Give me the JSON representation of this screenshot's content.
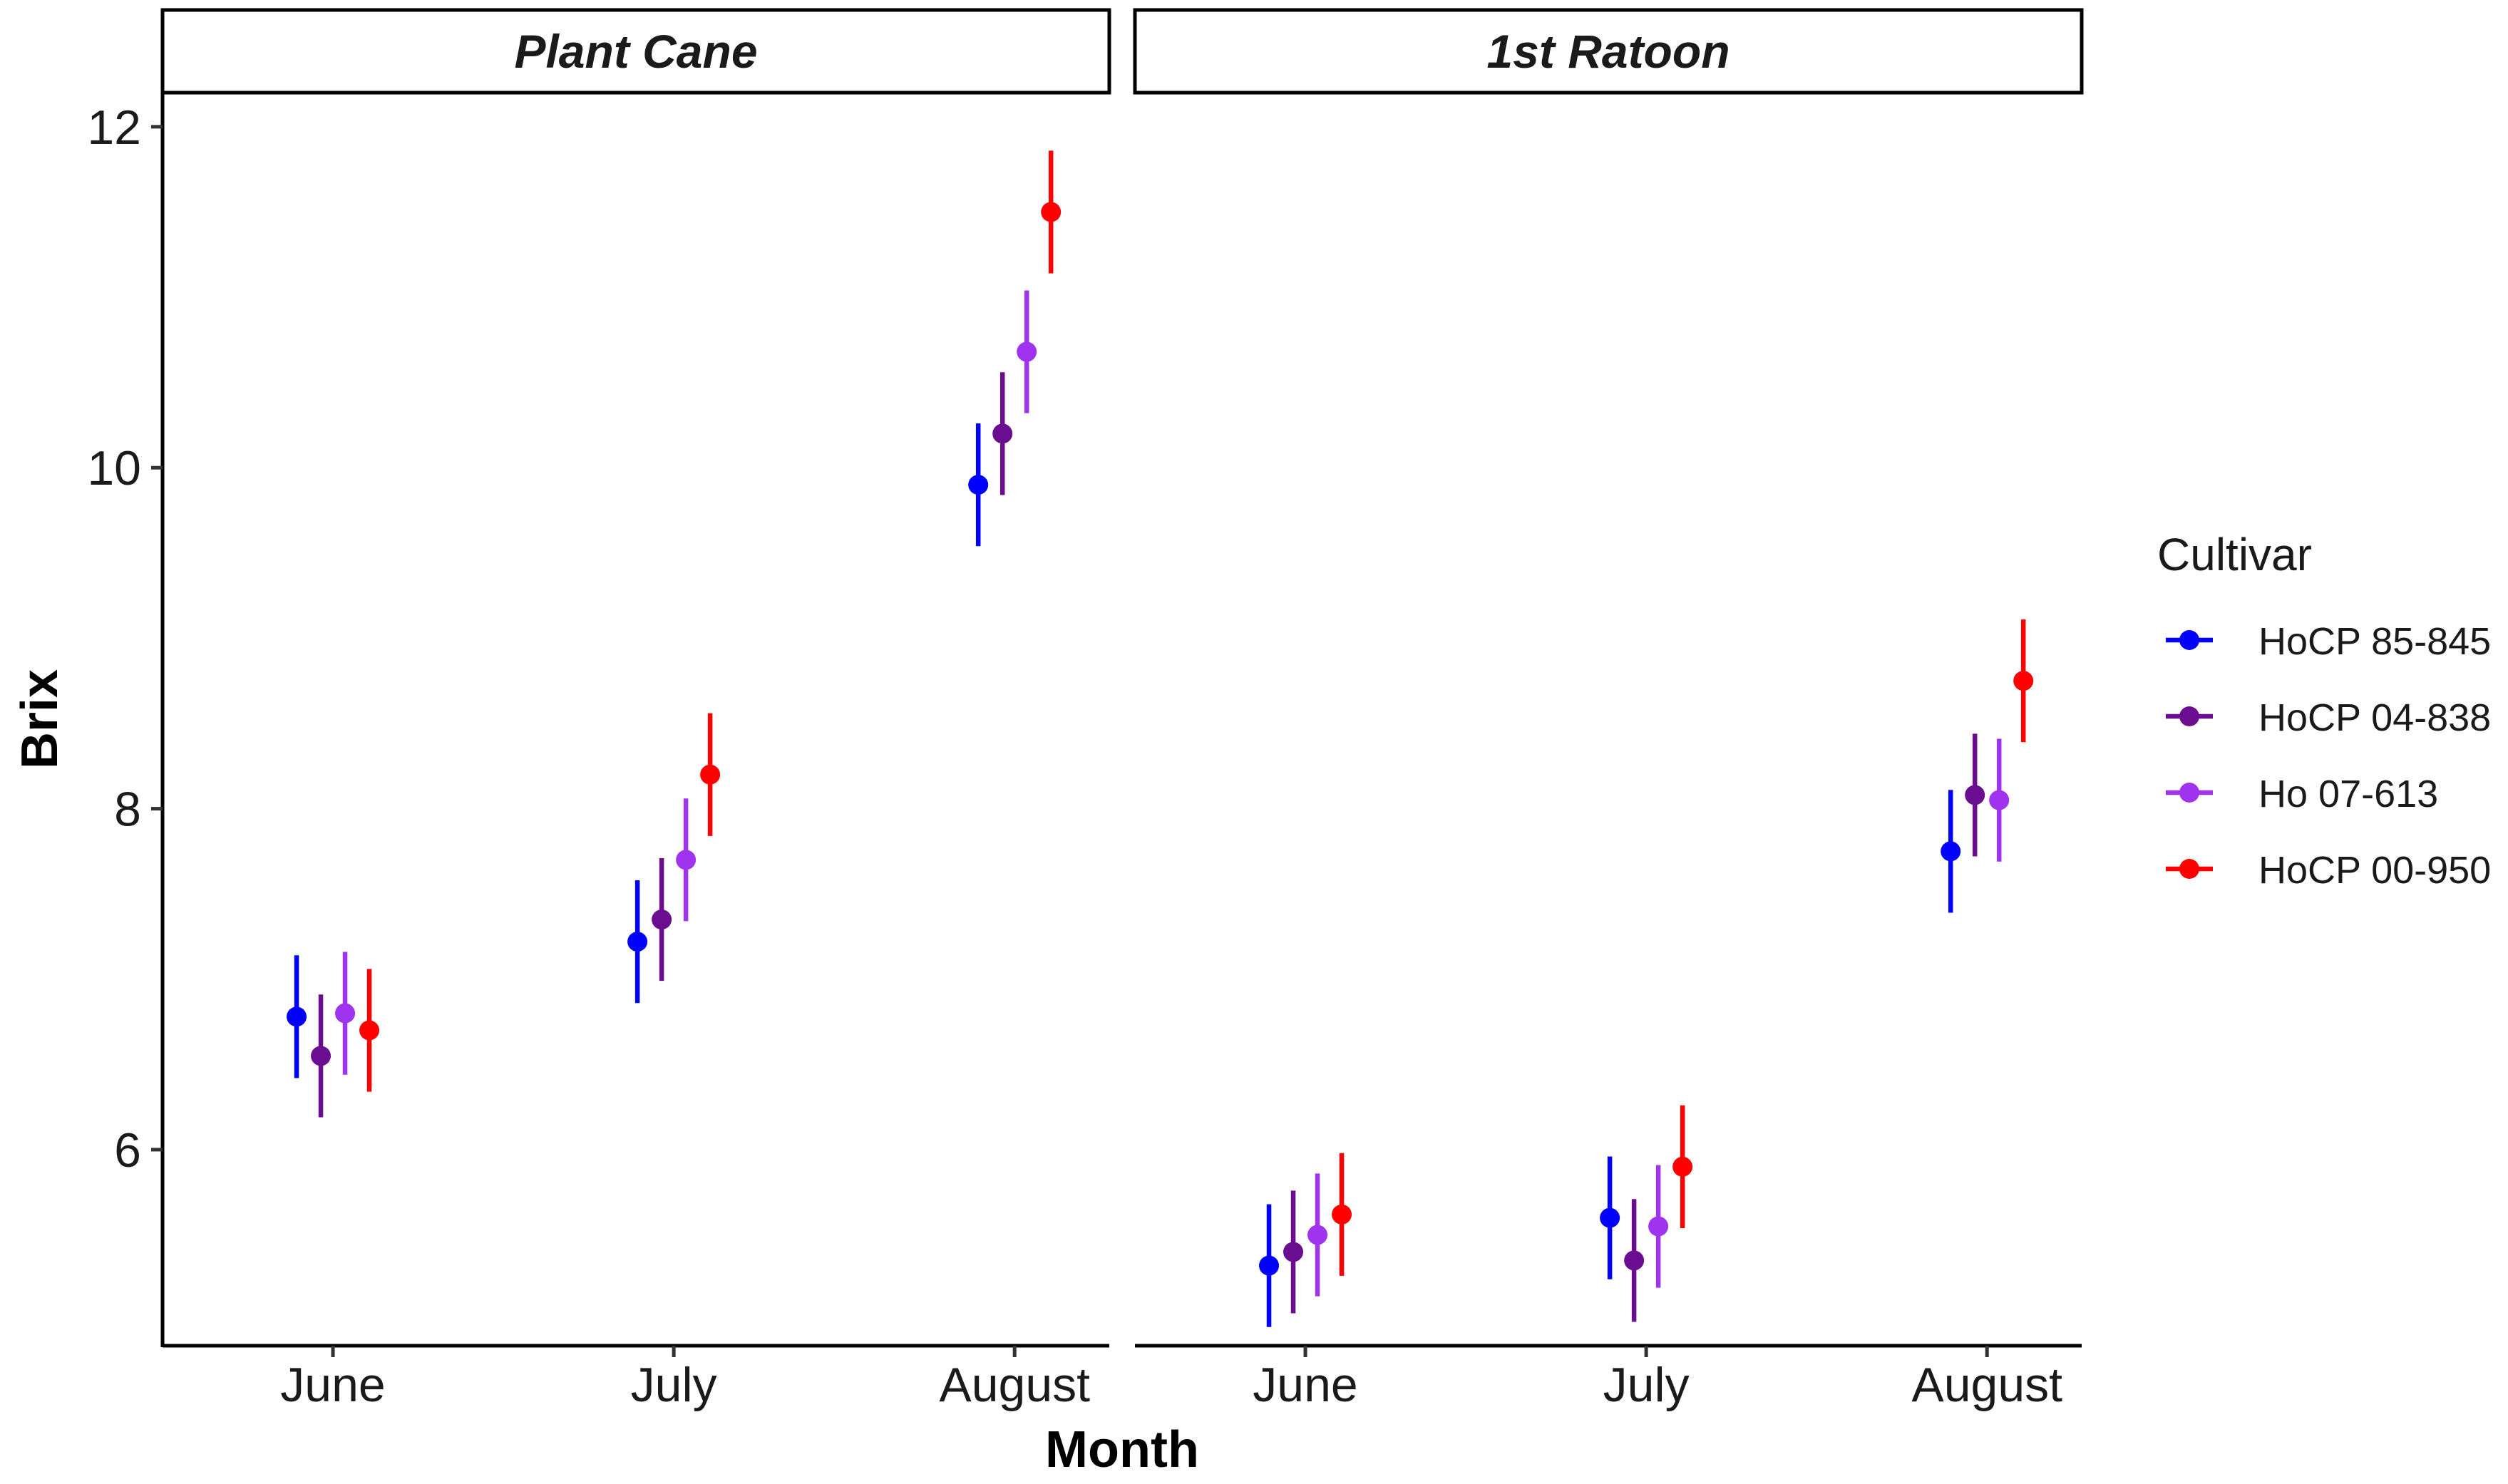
{
  "chart_data": {
    "type": "scatter",
    "subtype": "point with error bars, faceted",
    "xlabel": "Month",
    "ylabel": "Brix",
    "ylim": [
      4.85,
      12.2
    ],
    "yticks": [
      6,
      8,
      10,
      12
    ],
    "categories": [
      "June",
      "July",
      "August"
    ],
    "legend": {
      "title": "Cultivar",
      "position": "right",
      "entries": [
        "HoCP 85-845",
        "HoCP 04-838",
        "Ho 07-613",
        "HoCP 00-950"
      ]
    },
    "colors": {
      "HoCP 85-845": "#0000FF",
      "HoCP 04-838": "#6A0D91",
      "Ho 07-613": "#A033F0",
      "HoCP 00-950": "#FF0000"
    },
    "facets": [
      {
        "label": "Plant Cane",
        "series": [
          {
            "name": "HoCP 85-845",
            "values": [
              6.78,
              7.22,
              9.9
            ],
            "lower": [
              6.42,
              6.86,
              9.54
            ],
            "upper": [
              7.14,
              7.58,
              10.26
            ]
          },
          {
            "name": "HoCP 04-838",
            "values": [
              6.55,
              7.35,
              10.2
            ],
            "lower": [
              6.19,
              6.99,
              9.84
            ],
            "upper": [
              6.91,
              7.71,
              10.56
            ]
          },
          {
            "name": "Ho 07-613",
            "values": [
              6.8,
              7.7,
              10.68
            ],
            "lower": [
              6.44,
              7.34,
              10.32
            ],
            "upper": [
              7.16,
              8.06,
              11.04
            ]
          },
          {
            "name": "HoCP 00-950",
            "values": [
              6.7,
              8.2,
              11.5
            ],
            "lower": [
              6.34,
              7.84,
              11.14
            ],
            "upper": [
              7.06,
              8.56,
              11.86
            ]
          }
        ]
      },
      {
        "label": "1st Ratoon",
        "series": [
          {
            "name": "HoCP 85-845",
            "values": [
              5.32,
              5.6,
              7.75
            ],
            "lower": [
              4.96,
              5.24,
              7.39
            ],
            "upper": [
              5.68,
              5.96,
              8.11
            ]
          },
          {
            "name": "HoCP 04-838",
            "values": [
              5.4,
              5.35,
              8.08
            ],
            "lower": [
              5.04,
              4.99,
              7.72
            ],
            "upper": [
              5.76,
              5.71,
              8.44
            ]
          },
          {
            "name": "Ho 07-613",
            "values": [
              5.5,
              5.55,
              8.05
            ],
            "lower": [
              5.14,
              5.19,
              7.69
            ],
            "upper": [
              5.86,
              5.91,
              8.41
            ]
          },
          {
            "name": "HoCP 00-950",
            "values": [
              5.62,
              5.9,
              8.75
            ],
            "lower": [
              5.26,
              5.54,
              8.39
            ],
            "upper": [
              5.98,
              6.26,
              9.11
            ]
          }
        ]
      }
    ]
  }
}
